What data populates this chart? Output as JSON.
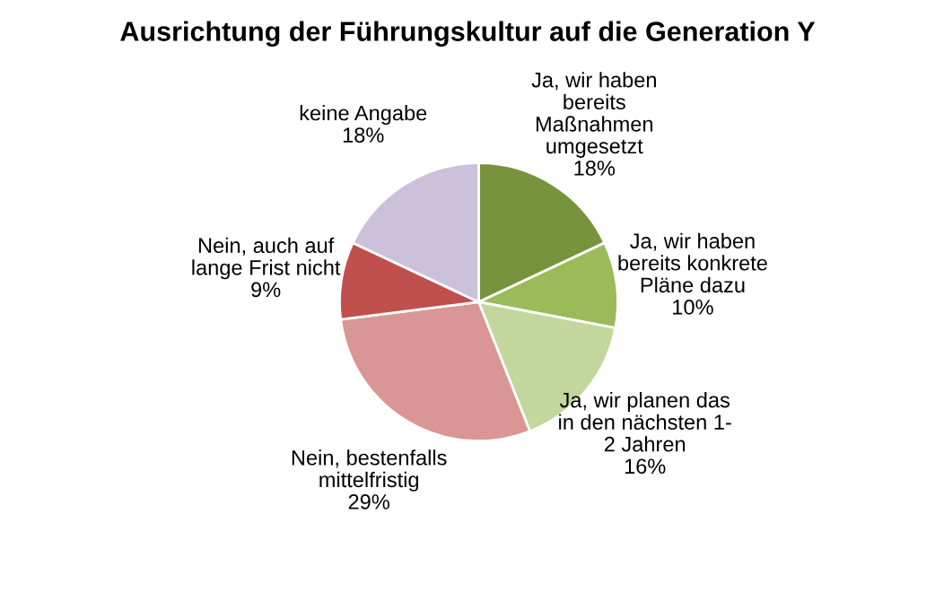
{
  "chart_data": {
    "type": "pie",
    "title": "Ausrichtung der Führungskultur auf die Generation Y",
    "categories": [
      "Ja, wir haben\nbereits\nMaßnahmen\numgesetzt",
      "Ja, wir haben\nbereits konkrete\nPläne dazu",
      "Ja, wir planen das\nin den nächsten 1-\n2 Jahren",
      "Nein, bestenfalls\nmittelfristig",
      "Nein, auch auf\nlange Frist nicht",
      "keine Angabe"
    ],
    "values": [
      18,
      10,
      16,
      29,
      9,
      18
    ],
    "value_labels": [
      "18%",
      "10%",
      "16%",
      "29%",
      "9%",
      "18%"
    ],
    "colors": [
      "#77933c",
      "#9bbb59",
      "#c3d69b",
      "#d99694",
      "#c0504d",
      "#ccc1da"
    ]
  }
}
